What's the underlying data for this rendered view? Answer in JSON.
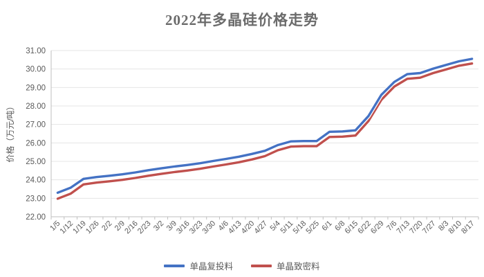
{
  "chart_data": {
    "type": "line",
    "title": "2022年多晶硅价格走势",
    "ylabel": "价格（万元/吨）",
    "ylim": [
      22,
      31
    ],
    "ytick_step": 1,
    "ytick_decimals": 2,
    "grid": "horizontal",
    "legend_position": "bottom",
    "colors": {
      "axis": "#bfbfbf",
      "gridline": "#e4e4e4",
      "tick_text": "#595959",
      "title_text": "#6b6b6b"
    },
    "categories": [
      "1/5",
      "1/12",
      "1/19",
      "1/26",
      "2/2",
      "2/9",
      "2/16",
      "2/23",
      "3/2",
      "3/9",
      "3/16",
      "3/23",
      "3/30",
      "4/6",
      "4/13",
      "4/20",
      "4/27",
      "5/4",
      "5/11",
      "5/18",
      "5/25",
      "6/1",
      "6/8",
      "6/15",
      "6/22",
      "6/29",
      "7/6",
      "7/13",
      "7/20",
      "7/27",
      "8/3",
      "8/10",
      "8/17"
    ],
    "series": [
      {
        "name": "单晶复投料",
        "color": "#4472C4",
        "values": [
          23.3,
          23.57,
          24.05,
          24.15,
          24.22,
          24.3,
          24.4,
          24.52,
          24.62,
          24.72,
          24.8,
          24.9,
          25.02,
          25.13,
          25.25,
          25.4,
          25.57,
          25.88,
          26.08,
          26.1,
          26.1,
          26.6,
          26.62,
          26.68,
          27.45,
          28.6,
          29.3,
          29.72,
          29.78,
          30.02,
          30.22,
          30.42,
          30.55
        ]
      },
      {
        "name": "单晶致密料",
        "color": "#C0504D",
        "values": [
          22.98,
          23.25,
          23.75,
          23.85,
          23.92,
          24.0,
          24.1,
          24.22,
          24.32,
          24.42,
          24.5,
          24.6,
          24.72,
          24.83,
          24.95,
          25.1,
          25.28,
          25.6,
          25.8,
          25.82,
          25.82,
          26.32,
          26.34,
          26.4,
          27.18,
          28.33,
          29.05,
          29.47,
          29.53,
          29.78,
          29.98,
          30.18,
          30.3
        ]
      }
    ]
  }
}
